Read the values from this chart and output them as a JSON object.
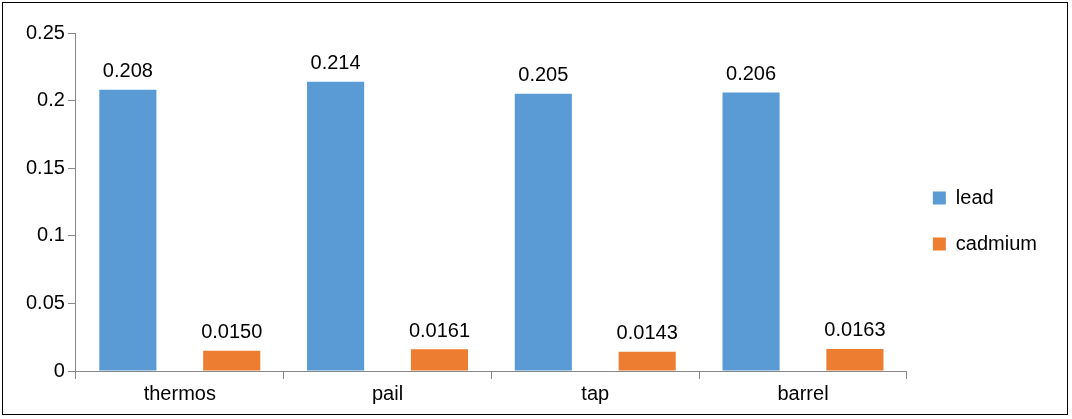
{
  "chart_data": {
    "type": "bar",
    "categories": [
      "thermos",
      "pail",
      "tap",
      "barrel"
    ],
    "series": [
      {
        "name": "lead",
        "color": "#5b9bd5",
        "values": [
          0.208,
          0.214,
          0.205,
          0.206
        ],
        "value_labels": [
          "0.208",
          "0.214",
          "0.205",
          "0.206"
        ]
      },
      {
        "name": "cadmium",
        "color": "#ed7d31",
        "values": [
          0.015,
          0.0161,
          0.0143,
          0.0163
        ],
        "value_labels": [
          "0.0150",
          "0.0161",
          "0.0143",
          "0.0163"
        ]
      }
    ],
    "ylim": [
      0,
      0.25
    ],
    "yticks": [
      0,
      0.05,
      0.1,
      0.15,
      0.2,
      0.25
    ],
    "grid": false,
    "legend": "right"
  }
}
